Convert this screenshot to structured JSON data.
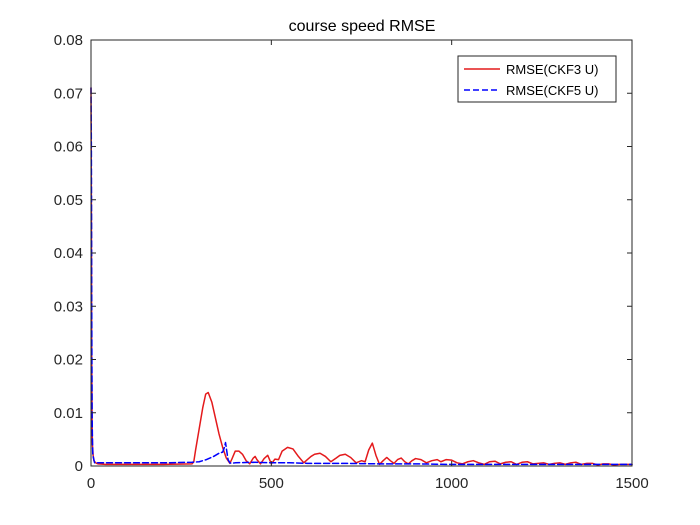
{
  "chart_data": {
    "type": "line",
    "title": "course speed RMSE",
    "xlabel": "",
    "ylabel": "",
    "xlim": [
      0,
      1500
    ],
    "ylim": [
      0,
      0.08
    ],
    "xticks": [
      0,
      500,
      1000,
      1500
    ],
    "xtick_labels": [
      "0",
      "500",
      "1000",
      "1500"
    ],
    "yticks": [
      0,
      0.01,
      0.02,
      0.03,
      0.04,
      0.05,
      0.06,
      0.07,
      0.08
    ],
    "ytick_labels": [
      "0",
      "0.01",
      "0.02",
      "0.03",
      "0.04",
      "0.05",
      "0.06",
      "0.07",
      "0.08"
    ],
    "grid": false,
    "box": true,
    "legend_position": "top-right",
    "series": [
      {
        "name": "RMSE(CKF3 U)",
        "color": "#e41a1c",
        "line_style": "solid",
        "x": [
          0,
          1,
          2,
          3,
          4,
          6,
          8,
          10,
          15,
          20,
          40,
          80,
          150,
          200,
          280,
          285,
          290,
          300,
          310,
          318,
          325,
          335,
          345,
          355,
          365,
          375,
          385,
          390,
          395,
          400,
          410,
          420,
          430,
          440,
          450,
          455,
          460,
          470,
          480,
          490,
          500,
          510,
          520,
          530,
          545,
          560,
          575,
          590,
          600,
          610,
          620,
          635,
          650,
          665,
          680,
          690,
          705,
          720,
          735,
          750,
          760,
          770,
          780,
          790,
          800,
          810,
          820,
          830,
          840,
          850,
          860,
          870,
          880,
          890,
          900,
          915,
          930,
          945,
          960,
          970,
          985,
          1000,
          1015,
          1030,
          1045,
          1060,
          1075,
          1090,
          1105,
          1120,
          1135,
          1150,
          1165,
          1180,
          1195,
          1210,
          1225,
          1240,
          1255,
          1270,
          1285,
          1300,
          1315,
          1330,
          1345,
          1360,
          1375,
          1390,
          1405,
          1420,
          1435,
          1450,
          1465,
          1480,
          1500
        ],
        "y": [
          0.071,
          0.05,
          0.02,
          0.008,
          0.004,
          0.002,
          0.001,
          0.0008,
          0.0005,
          0.0004,
          0.0003,
          0.0003,
          0.0003,
          0.0003,
          0.0004,
          0.0008,
          0.003,
          0.007,
          0.011,
          0.0135,
          0.0138,
          0.012,
          0.009,
          0.006,
          0.0035,
          0.0015,
          0.0005,
          0.0012,
          0.002,
          0.0028,
          0.0028,
          0.0022,
          0.001,
          0.0004,
          0.0015,
          0.0018,
          0.0012,
          0.0004,
          0.0014,
          0.002,
          0.0004,
          0.0013,
          0.0012,
          0.0028,
          0.0035,
          0.0032,
          0.0018,
          0.0006,
          0.0012,
          0.0018,
          0.0022,
          0.0024,
          0.0018,
          0.0008,
          0.0015,
          0.002,
          0.0022,
          0.0016,
          0.0006,
          0.001,
          0.0008,
          0.003,
          0.0043,
          0.002,
          0.0003,
          0.001,
          0.0016,
          0.001,
          0.0005,
          0.0012,
          0.0015,
          0.0008,
          0.0004,
          0.001,
          0.0014,
          0.0012,
          0.0006,
          0.001,
          0.0012,
          0.0008,
          0.0012,
          0.0011,
          0.0006,
          0.0004,
          0.0008,
          0.001,
          0.0006,
          0.0003,
          0.0008,
          0.0009,
          0.0004,
          0.0007,
          0.0008,
          0.0003,
          0.0007,
          0.0008,
          0.0004,
          0.0005,
          0.0006,
          0.0003,
          0.0005,
          0.0006,
          0.0003,
          0.0006,
          0.0007,
          0.0003,
          0.0005,
          0.0005,
          0.0002,
          0.0004,
          0.0004,
          0.0002,
          0.0003,
          0.0003,
          0.0003
        ]
      },
      {
        "name": "RMSE(CKF5 U)",
        "color": "#0000ff",
        "line_style": "dashed",
        "x": [
          0,
          1,
          2,
          3,
          4,
          5,
          7,
          10,
          20,
          50,
          100,
          200,
          280,
          300,
          320,
          340,
          355,
          365,
          370,
          373,
          376,
          380,
          385,
          390,
          400,
          450,
          500,
          550,
          600,
          700,
          800,
          900,
          1000,
          1100,
          1200,
          1300,
          1400,
          1500
        ],
        "y": [
          0.071,
          0.06,
          0.03,
          0.01,
          0.005,
          0.002,
          0.0015,
          0.0006,
          0.0006,
          0.0006,
          0.0006,
          0.0006,
          0.0007,
          0.0008,
          0.0012,
          0.0018,
          0.0024,
          0.0026,
          0.0035,
          0.0044,
          0.003,
          0.0012,
          0.0006,
          0.0005,
          0.0006,
          0.0007,
          0.0006,
          0.0006,
          0.0005,
          0.0005,
          0.0004,
          0.0004,
          0.0003,
          0.0003,
          0.0003,
          0.0003,
          0.0003,
          0.0003
        ]
      }
    ]
  }
}
